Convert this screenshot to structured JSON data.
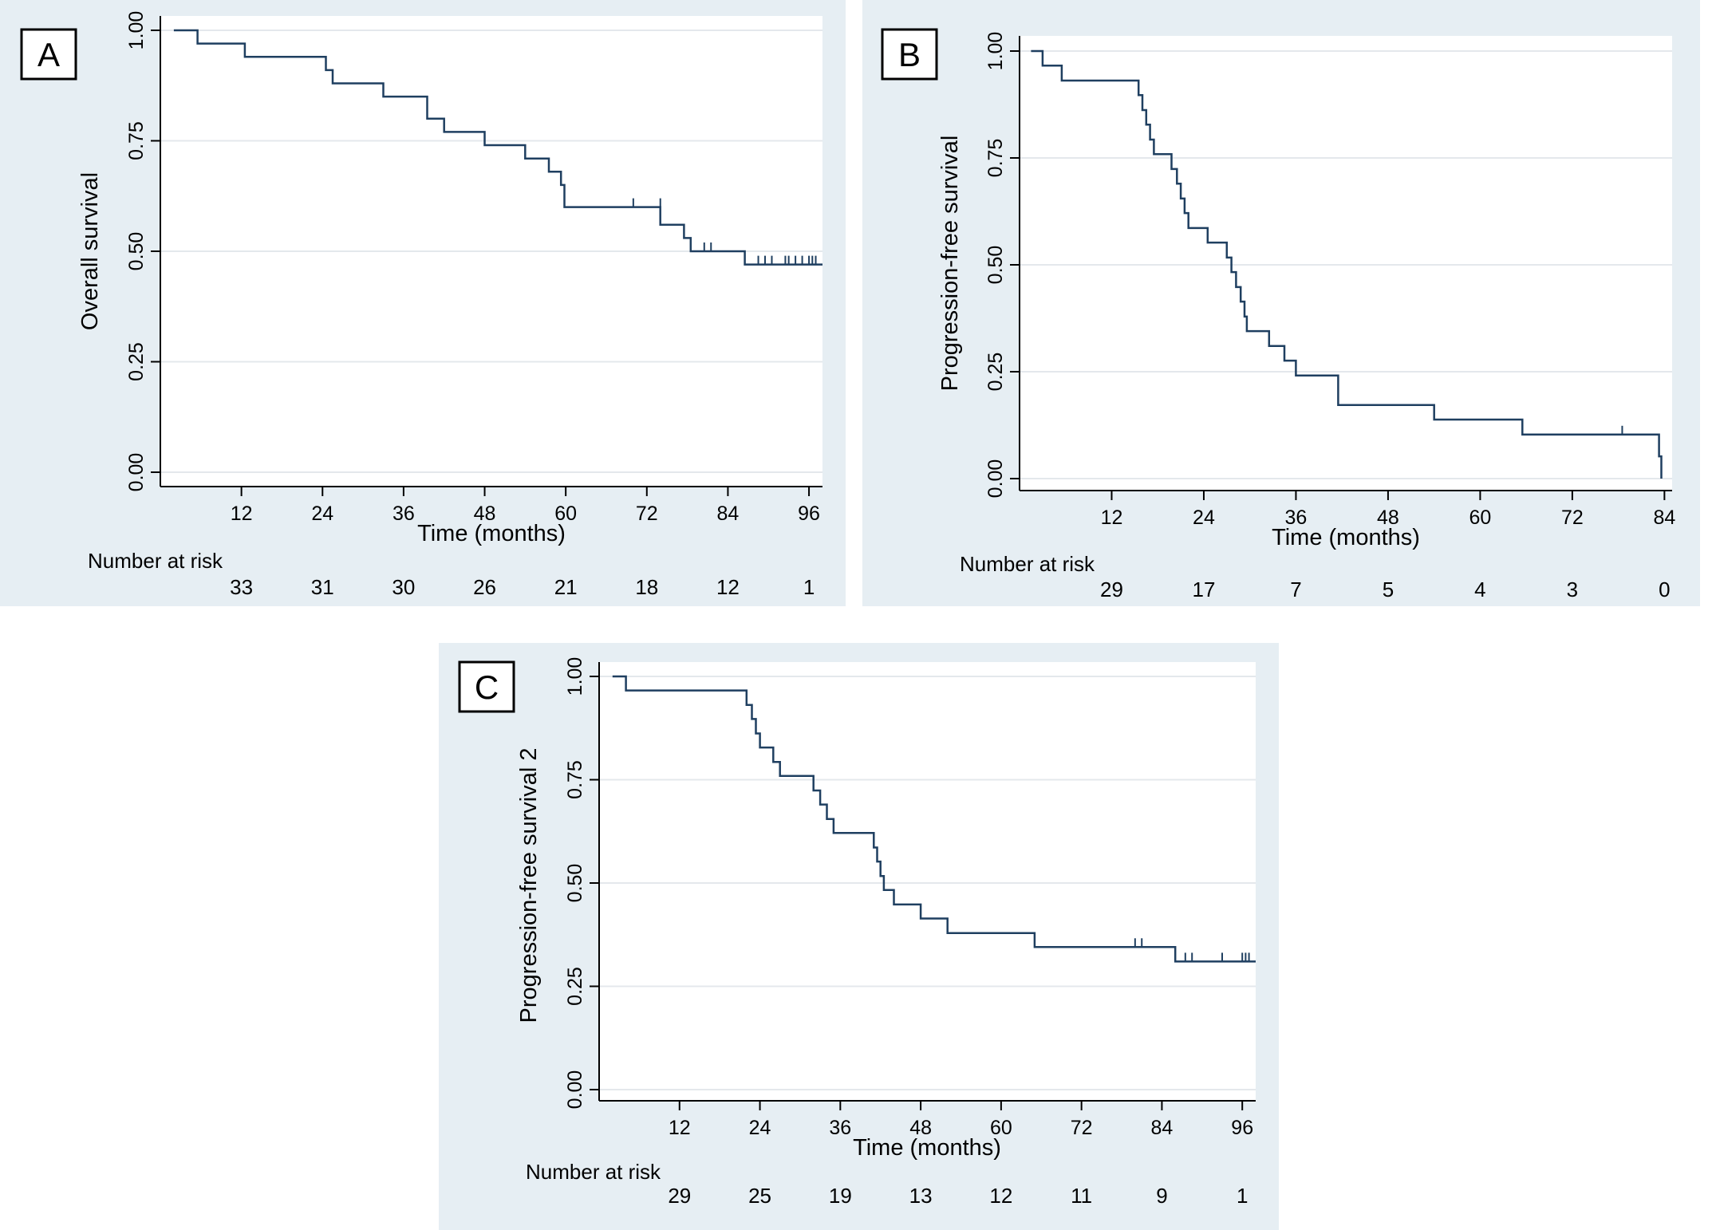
{
  "colors": {
    "panel_background": "#e6eef3",
    "plot_background": "#ffffff",
    "survival_line": "#1f3f60",
    "gridline": "#e4e8ec"
  },
  "chart_data": [
    {
      "panel": "A",
      "type": "line",
      "step": true,
      "ylabel": "Overall survival",
      "xlabel": "Time (months)",
      "xlim": [
        0,
        98
      ],
      "ylim": [
        0,
        1
      ],
      "x_ticks": [
        12,
        24,
        36,
        48,
        60,
        72,
        84,
        96
      ],
      "y_ticks": [
        "0.00",
        "0.25",
        "0.50",
        "0.75",
        "1.00"
      ],
      "grid": true,
      "risk_table_label": "Number at risk",
      "number_at_risk": [
        33,
        31,
        30,
        26,
        21,
        18,
        12,
        1
      ],
      "series": [
        {
          "points": [
            [
              2,
              1.0
            ],
            [
              5.5,
              1.0
            ],
            [
              5.5,
              0.97
            ],
            [
              12.5,
              0.97
            ],
            [
              12.5,
              0.94
            ],
            [
              24.5,
              0.94
            ],
            [
              24.5,
              0.91
            ],
            [
              25.5,
              0.91
            ],
            [
              25.5,
              0.88
            ],
            [
              33,
              0.88
            ],
            [
              33,
              0.85
            ],
            [
              39.5,
              0.85
            ],
            [
              39.5,
              0.8
            ],
            [
              42,
              0.8
            ],
            [
              42,
              0.77
            ],
            [
              48,
              0.77
            ],
            [
              48,
              0.74
            ],
            [
              54,
              0.74
            ],
            [
              54,
              0.71
            ],
            [
              57.5,
              0.71
            ],
            [
              57.5,
              0.68
            ],
            [
              59.3,
              0.68
            ],
            [
              59.3,
              0.65
            ],
            [
              59.8,
              0.65
            ],
            [
              59.8,
              0.6
            ],
            [
              74,
              0.6
            ],
            [
              74,
              0.56
            ],
            [
              77.5,
              0.56
            ],
            [
              77.5,
              0.53
            ],
            [
              78.5,
              0.53
            ],
            [
              78.5,
              0.5
            ],
            [
              86.5,
              0.5
            ],
            [
              86.5,
              0.47
            ],
            [
              98,
              0.47
            ]
          ],
          "censored": [
            [
              70,
              0.6
            ],
            [
              74,
              0.6
            ],
            [
              80.5,
              0.5
            ],
            [
              81.5,
              0.5
            ],
            [
              88.5,
              0.47
            ],
            [
              89.5,
              0.47
            ],
            [
              90.5,
              0.47
            ],
            [
              92.5,
              0.47
            ],
            [
              93,
              0.47
            ],
            [
              94,
              0.47
            ],
            [
              95,
              0.47
            ],
            [
              96,
              0.47
            ],
            [
              96.5,
              0.47
            ],
            [
              97,
              0.47
            ]
          ]
        }
      ]
    },
    {
      "panel": "B",
      "type": "line",
      "step": true,
      "ylabel": "Progression-free survival",
      "xlabel": "Time (months)",
      "xlim": [
        0,
        85
      ],
      "ylim": [
        0,
        1
      ],
      "x_ticks": [
        12,
        24,
        36,
        48,
        60,
        72,
        84
      ],
      "y_ticks": [
        "0.00",
        "0.25",
        "0.50",
        "0.75",
        "1.00"
      ],
      "grid": true,
      "risk_table_label": "Number at risk",
      "number_at_risk": [
        29,
        17,
        7,
        5,
        4,
        3,
        0
      ],
      "series": [
        {
          "points": [
            [
              1.5,
              1.0
            ],
            [
              3,
              1.0
            ],
            [
              3,
              0.966
            ],
            [
              5.5,
              0.966
            ],
            [
              5.5,
              0.931
            ],
            [
              15.5,
              0.931
            ],
            [
              15.5,
              0.897
            ],
            [
              16,
              0.897
            ],
            [
              16,
              0.862
            ],
            [
              16.5,
              0.862
            ],
            [
              16.5,
              0.828
            ],
            [
              17,
              0.828
            ],
            [
              17,
              0.793
            ],
            [
              17.5,
              0.793
            ],
            [
              17.5,
              0.759
            ],
            [
              19.8,
              0.759
            ],
            [
              19.8,
              0.724
            ],
            [
              20.5,
              0.724
            ],
            [
              20.5,
              0.69
            ],
            [
              21,
              0.69
            ],
            [
              21,
              0.655
            ],
            [
              21.5,
              0.655
            ],
            [
              21.5,
              0.621
            ],
            [
              22,
              0.621
            ],
            [
              22,
              0.586
            ],
            [
              24.5,
              0.586
            ],
            [
              24.5,
              0.552
            ],
            [
              27,
              0.552
            ],
            [
              27,
              0.517
            ],
            [
              27.6,
              0.517
            ],
            [
              27.6,
              0.483
            ],
            [
              28.2,
              0.483
            ],
            [
              28.2,
              0.448
            ],
            [
              28.8,
              0.448
            ],
            [
              28.8,
              0.414
            ],
            [
              29.3,
              0.414
            ],
            [
              29.3,
              0.379
            ],
            [
              29.6,
              0.379
            ],
            [
              29.6,
              0.345
            ],
            [
              32.5,
              0.345
            ],
            [
              32.5,
              0.31
            ],
            [
              34.5,
              0.31
            ],
            [
              34.5,
              0.276
            ],
            [
              36,
              0.276
            ],
            [
              36,
              0.241
            ],
            [
              41.5,
              0.241
            ],
            [
              41.5,
              0.172
            ],
            [
              54,
              0.172
            ],
            [
              54,
              0.138
            ],
            [
              65.5,
              0.138
            ],
            [
              65.5,
              0.103
            ],
            [
              83.3,
              0.103
            ],
            [
              83.3,
              0.052
            ],
            [
              83.6,
              0.052
            ],
            [
              83.6,
              0.0
            ]
          ],
          "censored": [
            [
              78.5,
              0.103
            ]
          ]
        }
      ]
    },
    {
      "panel": "C",
      "type": "line",
      "step": true,
      "ylabel": "Progression-free survival 2",
      "xlabel": "Time (months)",
      "xlim": [
        0,
        98
      ],
      "ylim": [
        0,
        1
      ],
      "x_ticks": [
        12,
        24,
        36,
        48,
        60,
        72,
        84,
        96
      ],
      "y_ticks": [
        "0.00",
        "0.25",
        "0.50",
        "0.75",
        "1.00"
      ],
      "grid": true,
      "risk_table_label": "Number at risk",
      "number_at_risk": [
        29,
        25,
        19,
        13,
        12,
        11,
        9,
        1
      ],
      "series": [
        {
          "points": [
            [
              2,
              1.0
            ],
            [
              4,
              1.0
            ],
            [
              4,
              0.966
            ],
            [
              22,
              0.966
            ],
            [
              22,
              0.931
            ],
            [
              22.8,
              0.931
            ],
            [
              22.8,
              0.897
            ],
            [
              23.4,
              0.897
            ],
            [
              23.4,
              0.862
            ],
            [
              24,
              0.862
            ],
            [
              24,
              0.828
            ],
            [
              26,
              0.828
            ],
            [
              26,
              0.793
            ],
            [
              27,
              0.793
            ],
            [
              27,
              0.759
            ],
            [
              32,
              0.759
            ],
            [
              32,
              0.724
            ],
            [
              33,
              0.724
            ],
            [
              33,
              0.69
            ],
            [
              34,
              0.69
            ],
            [
              34,
              0.655
            ],
            [
              35,
              0.655
            ],
            [
              35,
              0.621
            ],
            [
              41,
              0.621
            ],
            [
              41,
              0.586
            ],
            [
              41.5,
              0.586
            ],
            [
              41.5,
              0.552
            ],
            [
              42,
              0.552
            ],
            [
              42,
              0.517
            ],
            [
              42.5,
              0.517
            ],
            [
              42.5,
              0.483
            ],
            [
              44,
              0.483
            ],
            [
              44,
              0.448
            ],
            [
              48,
              0.448
            ],
            [
              48,
              0.414
            ],
            [
              52,
              0.414
            ],
            [
              52,
              0.379
            ],
            [
              65,
              0.379
            ],
            [
              65,
              0.345
            ],
            [
              86,
              0.345
            ],
            [
              86,
              0.31
            ],
            [
              98,
              0.31
            ]
          ],
          "censored": [
            [
              80,
              0.345
            ],
            [
              81,
              0.345
            ],
            [
              87.5,
              0.31
            ],
            [
              88.5,
              0.31
            ],
            [
              93,
              0.31
            ],
            [
              96,
              0.31
            ],
            [
              96.5,
              0.31
            ],
            [
              97,
              0.31
            ]
          ]
        }
      ]
    }
  ]
}
